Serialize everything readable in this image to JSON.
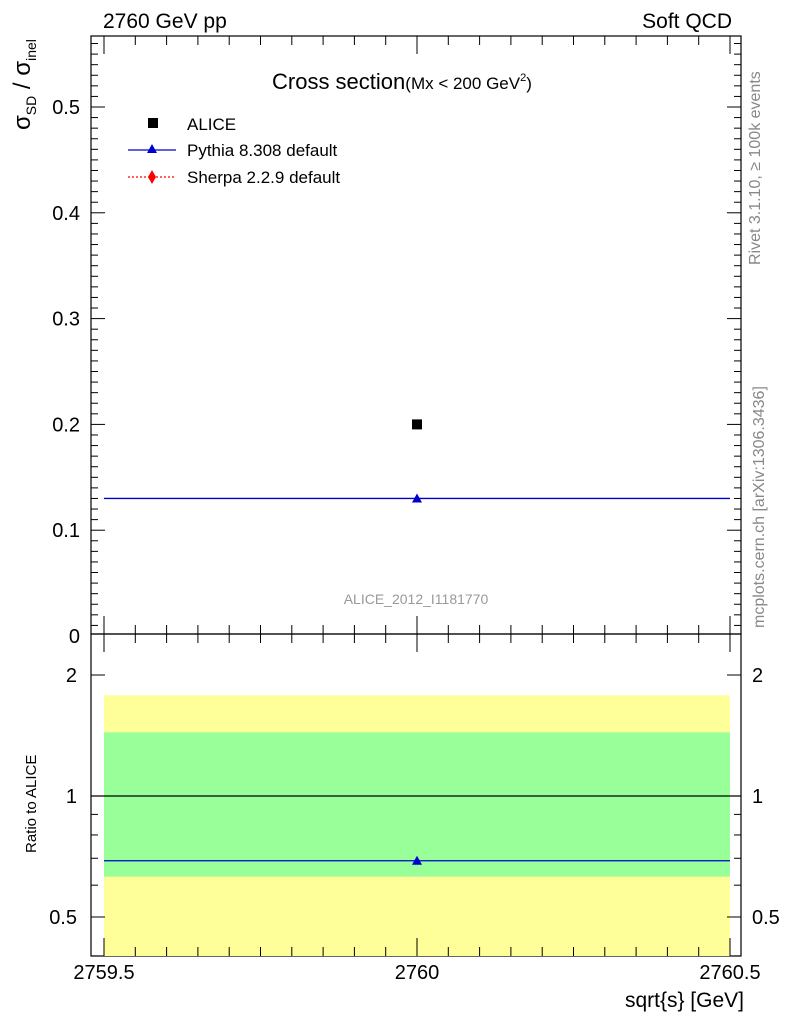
{
  "header": {
    "left": "2760 GeV pp",
    "right": "Soft QCD"
  },
  "plot_title": {
    "main": "Cross section",
    "sub": "(Mx < 200 GeV",
    "sup": "2",
    "close": ")"
  },
  "ylabel": {
    "s1": "σ",
    "sub1": "SD",
    "mid": " / σ",
    "sub2": "inel"
  },
  "side": {
    "rivet": "Rivet 3.1.10, ≥ 100k events",
    "mcplots": "mcplots.cern.ch [arXiv:1306.3436]"
  },
  "watermark": "ALICE_2012_I1181770",
  "legend": [
    {
      "label": "ALICE",
      "marker": "square",
      "color": "#000000"
    },
    {
      "label": "Pythia 8.308 default",
      "marker": "triangle",
      "color": "#0000cc"
    },
    {
      "label": "Sherpa 2.2.9 default",
      "marker": "diamond",
      "color": "#ff0000"
    }
  ],
  "ratio_ylabel": "Ratio to ALICE",
  "xlabel": "sqrt{s} [GeV]",
  "chart_data": [
    {
      "type": "scatter",
      "title": "Cross section (Mx < 200 GeV^2)",
      "xlabel": "sqrt{s} [GeV]",
      "ylabel": "σSD / σinel",
      "xlim": [
        2759.5,
        2760.5
      ],
      "ylim": [
        0,
        0.57
      ],
      "xticks": [
        "2759.5",
        "2760",
        "2760.5"
      ],
      "yticks": [
        "0",
        "0.1",
        "0.2",
        "0.3",
        "0.4",
        "0.5"
      ],
      "series": [
        {
          "name": "ALICE",
          "x": [
            2760
          ],
          "y": [
            0.2
          ],
          "color": "#000000"
        },
        {
          "name": "Pythia 8.308 default",
          "x": [
            2760
          ],
          "y": [
            0.13
          ],
          "xerr": [
            [
              2759.5,
              2760.5
            ]
          ],
          "color": "#0000cc"
        }
      ]
    },
    {
      "type": "line",
      "title": "",
      "ylabel": "Ratio to ALICE",
      "xlabel": "sqrt{s} [GeV]",
      "xlim": [
        2759.5,
        2760.5
      ],
      "ylim": [
        0.34,
        2.3
      ],
      "yticks": [
        "0.5",
        "1",
        "2"
      ],
      "bands": {
        "inner": [
          0.63,
          1.44
        ],
        "outer": [
          0.34,
          1.78
        ]
      },
      "series": [
        {
          "name": "Pythia 8.308 default",
          "x": [
            2760
          ],
          "y": [
            0.69
          ],
          "color": "#0000cc"
        }
      ]
    }
  ]
}
